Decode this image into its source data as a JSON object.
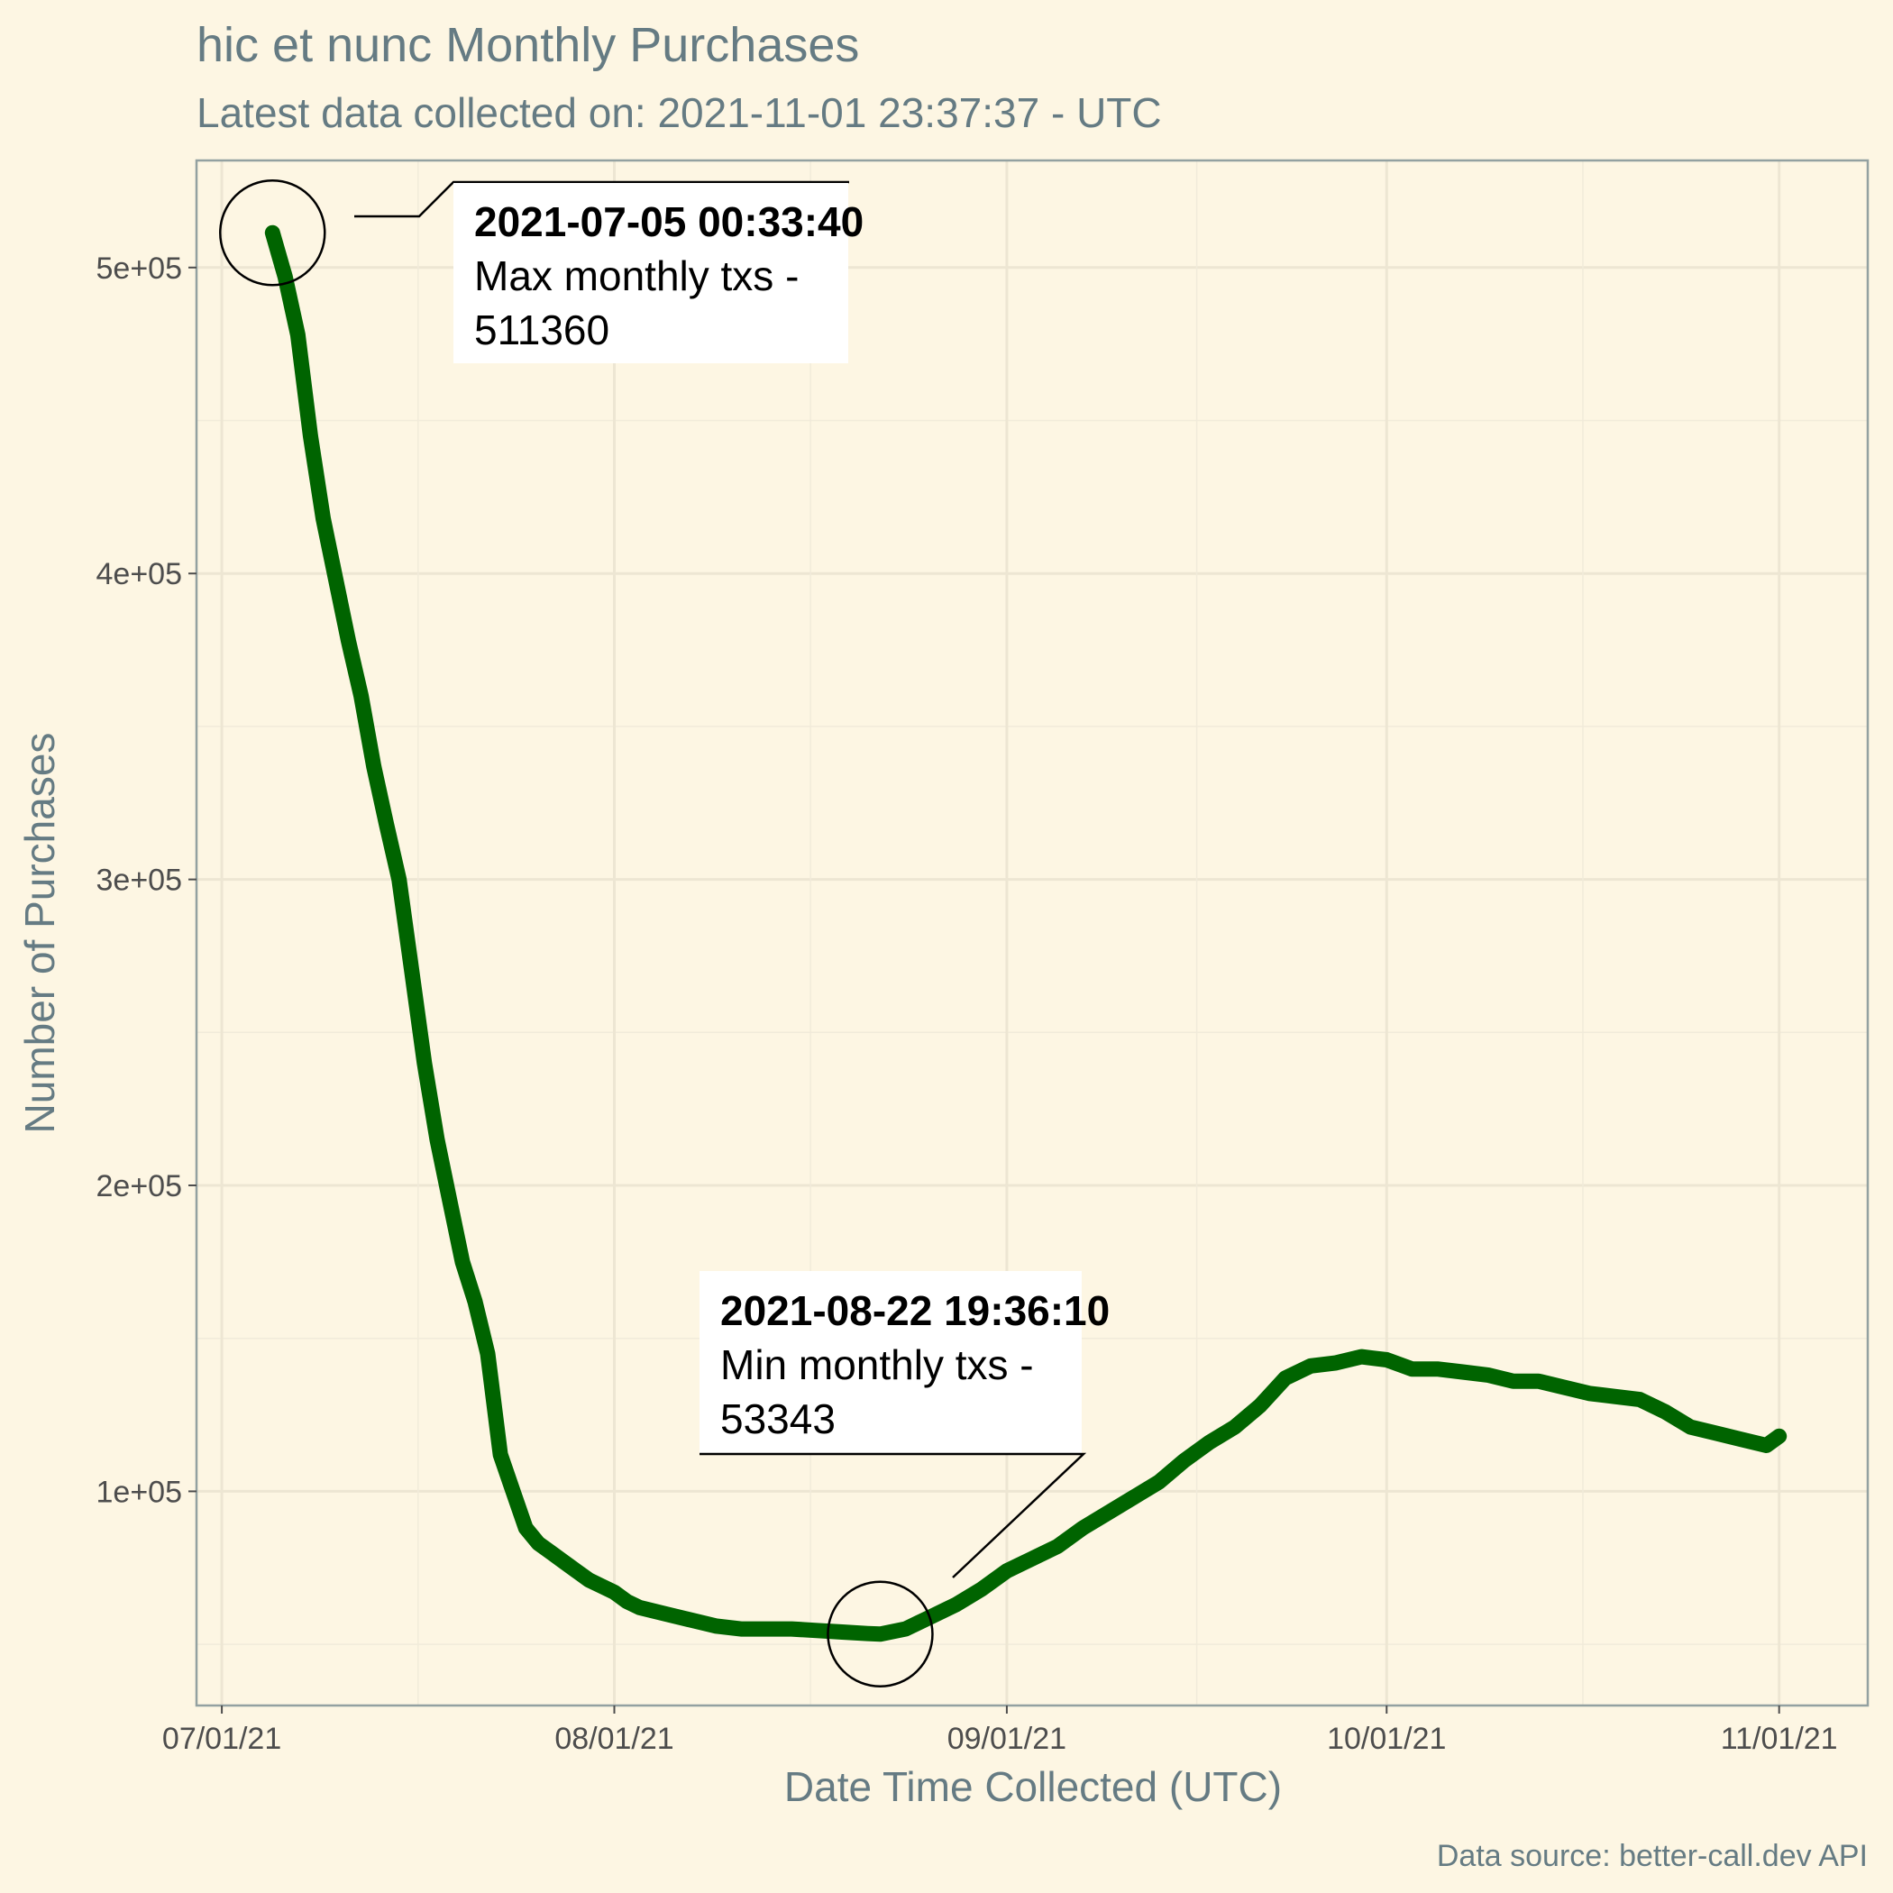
{
  "chart_data": {
    "type": "line",
    "title": "hic et nunc Monthly Purchases",
    "subtitle": "Latest data collected on: 2021-11-01 23:37:37  - UTC",
    "xlabel": "Date Time Collected (UTC)",
    "ylabel": "Number of Purchases",
    "caption": "Data source: better-call.dev API",
    "xlim": [
      "2021-06-29",
      "2021-11-08"
    ],
    "ylim": [
      30000,
      535000
    ],
    "x_ticks": [
      {
        "date": "2021-07-01",
        "label": "07/01/21"
      },
      {
        "date": "2021-08-01",
        "label": "08/01/21"
      },
      {
        "date": "2021-09-01",
        "label": "09/01/21"
      },
      {
        "date": "2021-10-01",
        "label": "10/01/21"
      },
      {
        "date": "2021-11-01",
        "label": "11/01/21"
      }
    ],
    "y_ticks": [
      {
        "value": 100000,
        "label": "1e+05"
      },
      {
        "value": 200000,
        "label": "2e+05"
      },
      {
        "value": 300000,
        "label": "3e+05"
      },
      {
        "value": 400000,
        "label": "4e+05"
      },
      {
        "value": 500000,
        "label": "5e+05"
      }
    ],
    "grid": true,
    "legend": "none",
    "series_color": "#006400",
    "x": [
      "2021-07-05",
      "2021-07-06",
      "2021-07-07",
      "2021-07-08",
      "2021-07-09",
      "2021-07-10",
      "2021-07-11",
      "2021-07-12",
      "2021-07-13",
      "2021-07-14",
      "2021-07-15",
      "2021-07-16",
      "2021-07-17",
      "2021-07-18",
      "2021-07-19",
      "2021-07-20",
      "2021-07-21",
      "2021-07-22",
      "2021-07-23",
      "2021-07-24",
      "2021-07-25",
      "2021-07-26",
      "2021-07-27",
      "2021-07-28",
      "2021-07-29",
      "2021-07-30",
      "2021-07-31",
      "2021-08-01",
      "2021-08-02",
      "2021-08-03",
      "2021-08-05",
      "2021-08-07",
      "2021-08-09",
      "2021-08-11",
      "2021-08-13",
      "2021-08-15",
      "2021-08-17",
      "2021-08-19",
      "2021-08-21",
      "2021-08-22",
      "2021-08-24",
      "2021-08-26",
      "2021-08-28",
      "2021-08-30",
      "2021-09-01",
      "2021-09-03",
      "2021-09-05",
      "2021-09-07",
      "2021-09-09",
      "2021-09-11",
      "2021-09-13",
      "2021-09-15",
      "2021-09-17",
      "2021-09-19",
      "2021-09-21",
      "2021-09-23",
      "2021-09-25",
      "2021-09-27",
      "2021-09-29",
      "2021-10-01",
      "2021-10-03",
      "2021-10-05",
      "2021-10-07",
      "2021-10-09",
      "2021-10-11",
      "2021-10-13",
      "2021-10-15",
      "2021-10-17",
      "2021-10-19",
      "2021-10-21",
      "2021-10-23",
      "2021-10-25",
      "2021-10-27",
      "2021-10-29",
      "2021-10-31",
      "2021-11-01"
    ],
    "y": [
      511360,
      497000,
      478000,
      445000,
      418000,
      398000,
      378000,
      360000,
      337000,
      318000,
      300000,
      270000,
      240000,
      215000,
      195000,
      175000,
      162000,
      145000,
      112000,
      100000,
      88000,
      83000,
      80000,
      77000,
      74000,
      71000,
      69000,
      67000,
      64000,
      62000,
      60000,
      58000,
      56000,
      55000,
      55000,
      55000,
      54500,
      54000,
      53500,
      53343,
      55000,
      59000,
      63000,
      68000,
      74000,
      78000,
      82000,
      88000,
      93000,
      98000,
      103000,
      110000,
      116000,
      121000,
      128000,
      137000,
      141000,
      142000,
      144000,
      143000,
      140000,
      140000,
      139000,
      138000,
      136000,
      136000,
      134000,
      132000,
      131000,
      130000,
      126000,
      121000,
      119000,
      117000,
      115000,
      118000
    ],
    "annotations": [
      {
        "kind": "max",
        "date": "2021-07-05",
        "value": 511360,
        "timestamp": "2021-07-05 00:33:40",
        "label": "Max monthly txs -",
        "value_label": "511360"
      },
      {
        "kind": "min",
        "date": "2021-08-22",
        "value": 53343,
        "timestamp": "2021-08-22 19:36:10",
        "label": "Min monthly txs -",
        "value_label": "53343"
      }
    ]
  }
}
